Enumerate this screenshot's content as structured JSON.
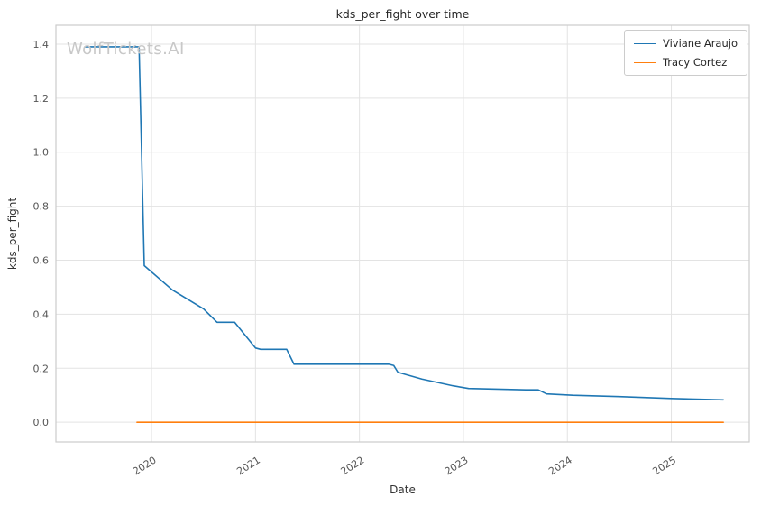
{
  "watermark": "WolfTickets.AI",
  "chart_data": {
    "type": "line",
    "title": "kds_per_fight over time",
    "xlabel": "Date",
    "ylabel": "kds_per_fight",
    "xlim": [
      2019.08,
      2025.75
    ],
    "ylim": [
      -0.073,
      1.47
    ],
    "xticks": [
      2020,
      2021,
      2022,
      2023,
      2024,
      2025
    ],
    "yticks": [
      0.0,
      0.2,
      0.4,
      0.6,
      0.8,
      1.0,
      1.2,
      1.4
    ],
    "grid": true,
    "legend_position": "upper right",
    "series": [
      {
        "name": "Viviane Araujo",
        "color": "#1f77b4",
        "points": [
          [
            2019.36,
            1.39
          ],
          [
            2019.88,
            1.39
          ],
          [
            2019.93,
            0.58
          ],
          [
            2020.2,
            0.49
          ],
          [
            2020.5,
            0.42
          ],
          [
            2020.63,
            0.37
          ],
          [
            2020.8,
            0.37
          ],
          [
            2021.0,
            0.275
          ],
          [
            2021.05,
            0.27
          ],
          [
            2021.3,
            0.27
          ],
          [
            2021.37,
            0.215
          ],
          [
            2022.28,
            0.215
          ],
          [
            2022.33,
            0.21
          ],
          [
            2022.37,
            0.185
          ],
          [
            2022.6,
            0.16
          ],
          [
            2022.9,
            0.135
          ],
          [
            2023.05,
            0.125
          ],
          [
            2023.6,
            0.12
          ],
          [
            2023.72,
            0.12
          ],
          [
            2023.8,
            0.105
          ],
          [
            2024.05,
            0.1
          ],
          [
            2024.5,
            0.095
          ],
          [
            2025.0,
            0.088
          ],
          [
            2025.5,
            0.083
          ]
        ]
      },
      {
        "name": "Tracy Cortez",
        "color": "#ff7f0e",
        "points": [
          [
            2019.86,
            0.0
          ],
          [
            2025.5,
            0.0
          ]
        ]
      }
    ]
  }
}
